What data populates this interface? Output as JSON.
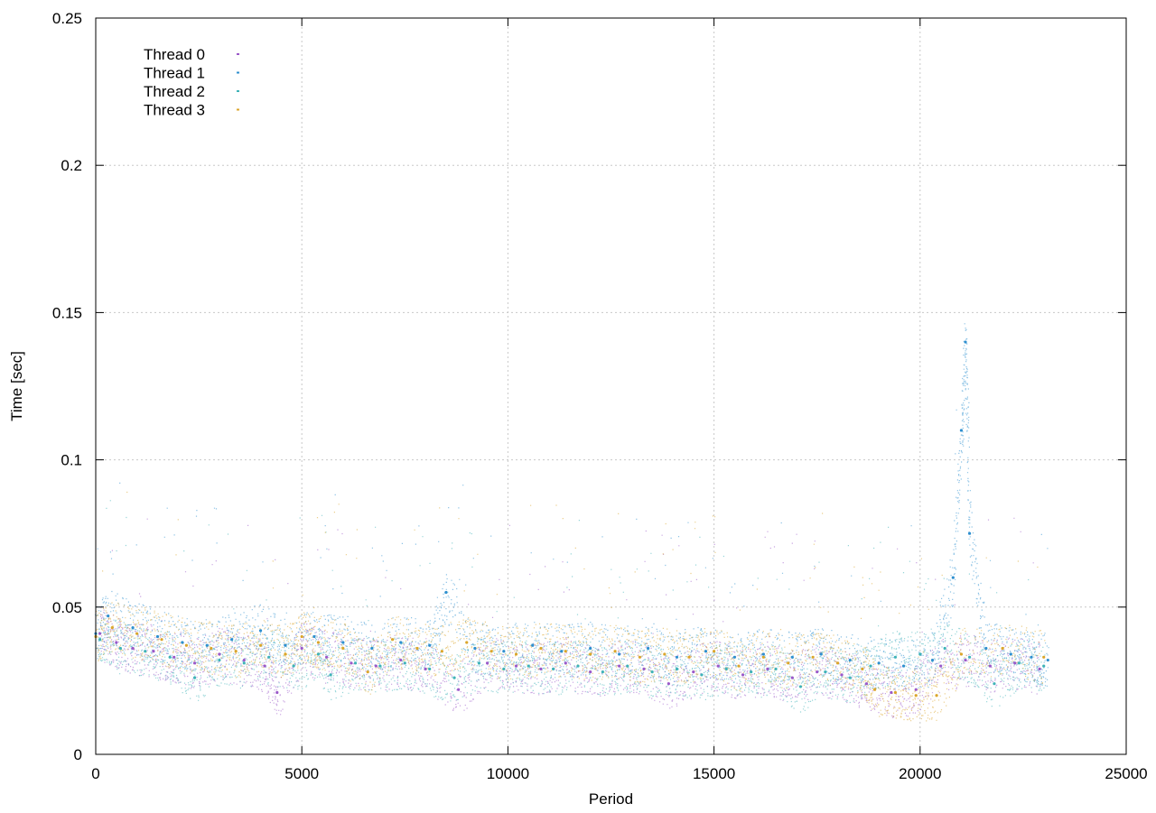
{
  "chart_data": {
    "type": "scatter",
    "xlabel": "Period",
    "ylabel": "Time [sec]",
    "xlim": [
      0,
      25000
    ],
    "ylim": [
      0,
      0.25
    ],
    "x_ticks": [
      0,
      5000,
      10000,
      15000,
      20000,
      25000
    ],
    "y_ticks": [
      0,
      0.05,
      0.1,
      0.15,
      0.2,
      0.25
    ],
    "x_tick_labels": [
      "0",
      "5000",
      "10000",
      "15000",
      "20000",
      "25000"
    ],
    "y_tick_labels": [
      "0",
      "0.05",
      "0.1",
      "0.15",
      "0.2",
      "0.25"
    ],
    "grid": true,
    "legend_position": "top-left",
    "series": [
      {
        "name": "Thread 0",
        "color": "#9b59c9",
        "points": [
          [
            100,
            0.041
          ],
          [
            500,
            0.038
          ],
          [
            900,
            0.036
          ],
          [
            1400,
            0.035
          ],
          [
            1900,
            0.033
          ],
          [
            2400,
            0.031
          ],
          [
            3000,
            0.034
          ],
          [
            3600,
            0.032
          ],
          [
            4100,
            0.03
          ],
          [
            4400,
            0.021
          ],
          [
            5000,
            0.036
          ],
          [
            5600,
            0.033
          ],
          [
            6200,
            0.031
          ],
          [
            6800,
            0.03
          ],
          [
            7400,
            0.032
          ],
          [
            8000,
            0.029
          ],
          [
            8800,
            0.022
          ],
          [
            9500,
            0.031
          ],
          [
            10200,
            0.03
          ],
          [
            10800,
            0.029
          ],
          [
            11400,
            0.031
          ],
          [
            12000,
            0.028
          ],
          [
            12700,
            0.03
          ],
          [
            13300,
            0.029
          ],
          [
            13900,
            0.024
          ],
          [
            14500,
            0.028
          ],
          [
            15100,
            0.03
          ],
          [
            15700,
            0.027
          ],
          [
            16300,
            0.029
          ],
          [
            16900,
            0.026
          ],
          [
            17500,
            0.028
          ],
          [
            18100,
            0.027
          ],
          [
            18700,
            0.024
          ],
          [
            19300,
            0.021
          ],
          [
            19900,
            0.022
          ],
          [
            20500,
            0.03
          ],
          [
            21100,
            0.032
          ],
          [
            21700,
            0.03
          ],
          [
            22300,
            0.031
          ],
          [
            22900,
            0.029
          ]
        ]
      },
      {
        "name": "Thread 1",
        "color": "#2e8fcf",
        "points": [
          [
            0,
            0.041
          ],
          [
            300,
            0.047
          ],
          [
            900,
            0.043
          ],
          [
            1500,
            0.04
          ],
          [
            2100,
            0.038
          ],
          [
            2700,
            0.037
          ],
          [
            3300,
            0.039
          ],
          [
            4000,
            0.042
          ],
          [
            4600,
            0.037
          ],
          [
            5300,
            0.04
          ],
          [
            6000,
            0.038
          ],
          [
            6700,
            0.036
          ],
          [
            7400,
            0.038
          ],
          [
            8100,
            0.037
          ],
          [
            8500,
            0.055
          ],
          [
            9200,
            0.036
          ],
          [
            9900,
            0.035
          ],
          [
            10600,
            0.037
          ],
          [
            11300,
            0.035
          ],
          [
            12000,
            0.036
          ],
          [
            12700,
            0.034
          ],
          [
            13400,
            0.036
          ],
          [
            14100,
            0.033
          ],
          [
            14800,
            0.035
          ],
          [
            15500,
            0.033
          ],
          [
            16200,
            0.034
          ],
          [
            16900,
            0.033
          ],
          [
            17600,
            0.034
          ],
          [
            18300,
            0.032
          ],
          [
            19000,
            0.031
          ],
          [
            19600,
            0.03
          ],
          [
            20300,
            0.032
          ],
          [
            20800,
            0.06
          ],
          [
            21000,
            0.11
          ],
          [
            21100,
            0.14
          ],
          [
            21200,
            0.075
          ],
          [
            21600,
            0.036
          ],
          [
            22200,
            0.034
          ],
          [
            22700,
            0.033
          ],
          [
            23100,
            0.032
          ]
        ]
      },
      {
        "name": "Thread 2",
        "color": "#3fb3b8",
        "points": [
          [
            100,
            0.039
          ],
          [
            600,
            0.036
          ],
          [
            1200,
            0.035
          ],
          [
            1800,
            0.033
          ],
          [
            2400,
            0.026
          ],
          [
            3000,
            0.032
          ],
          [
            3600,
            0.031
          ],
          [
            4200,
            0.033
          ],
          [
            4800,
            0.03
          ],
          [
            5400,
            0.034
          ],
          [
            5700,
            0.027
          ],
          [
            6300,
            0.031
          ],
          [
            6900,
            0.03
          ],
          [
            7500,
            0.031
          ],
          [
            8100,
            0.029
          ],
          [
            8700,
            0.026
          ],
          [
            9300,
            0.031
          ],
          [
            9900,
            0.029
          ],
          [
            10500,
            0.03
          ],
          [
            11100,
            0.029
          ],
          [
            11700,
            0.03
          ],
          [
            12300,
            0.028
          ],
          [
            12900,
            0.03
          ],
          [
            13500,
            0.028
          ],
          [
            14100,
            0.029
          ],
          [
            14700,
            0.027
          ],
          [
            15300,
            0.029
          ],
          [
            15900,
            0.028
          ],
          [
            16500,
            0.029
          ],
          [
            17100,
            0.023
          ],
          [
            17700,
            0.028
          ],
          [
            18300,
            0.026
          ],
          [
            18800,
            0.03
          ],
          [
            19400,
            0.033
          ],
          [
            20000,
            0.034
          ],
          [
            20600,
            0.036
          ],
          [
            21200,
            0.033
          ],
          [
            21800,
            0.024
          ],
          [
            22400,
            0.031
          ],
          [
            23000,
            0.03
          ]
        ]
      },
      {
        "name": "Thread 3",
        "color": "#dba62c",
        "points": [
          [
            0,
            0.04
          ],
          [
            400,
            0.043
          ],
          [
            1000,
            0.041
          ],
          [
            1600,
            0.039
          ],
          [
            2200,
            0.037
          ],
          [
            2800,
            0.036
          ],
          [
            3400,
            0.035
          ],
          [
            4000,
            0.037
          ],
          [
            4600,
            0.034
          ],
          [
            5000,
            0.04
          ],
          [
            5400,
            0.038
          ],
          [
            6000,
            0.036
          ],
          [
            6600,
            0.028
          ],
          [
            7200,
            0.039
          ],
          [
            7800,
            0.036
          ],
          [
            8400,
            0.035
          ],
          [
            9000,
            0.038
          ],
          [
            9600,
            0.035
          ],
          [
            10200,
            0.034
          ],
          [
            10800,
            0.036
          ],
          [
            11400,
            0.035
          ],
          [
            12000,
            0.034
          ],
          [
            12600,
            0.035
          ],
          [
            13200,
            0.033
          ],
          [
            13800,
            0.034
          ],
          [
            14400,
            0.033
          ],
          [
            15000,
            0.035
          ],
          [
            15600,
            0.03
          ],
          [
            16200,
            0.033
          ],
          [
            16800,
            0.031
          ],
          [
            17400,
            0.033
          ],
          [
            18000,
            0.031
          ],
          [
            18600,
            0.029
          ],
          [
            18900,
            0.022
          ],
          [
            19400,
            0.021
          ],
          [
            19900,
            0.02
          ],
          [
            20400,
            0.02
          ],
          [
            21000,
            0.034
          ],
          [
            22000,
            0.036
          ],
          [
            23000,
            0.033
          ]
        ]
      }
    ]
  }
}
